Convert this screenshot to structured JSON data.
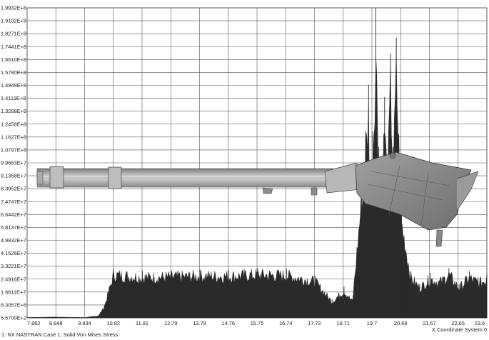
{
  "chart_data": {
    "type": "area",
    "title": "",
    "xlabel": "X Coordinate System 0",
    "ylabel": "",
    "legend_text": "1: NX NASTRAN Case 1, Solid Von Mises Stress",
    "x_ticks": [
      "7.862",
      "8.848",
      "9.834",
      "10.82",
      "11.81",
      "12.79",
      "13.78",
      "14.76",
      "15.75",
      "16.74",
      "17.72",
      "18.71",
      "19.7",
      "20.68",
      "21.67",
      "22.65",
      "23.6"
    ],
    "y_ticks": [
      "5.5700E+2",
      "8.3057E+6",
      "1.6611E+7",
      "2.4916E+7",
      "3.3221E+7",
      "4.1526E+7",
      "4.9832E+7",
      "5.8137E+7",
      "6.6442E+7",
      "7.4747E+7",
      "8.3052E+7",
      "9.1358E+7",
      "9.9663E+7",
      "1.0797E+8",
      "1.1627E+8",
      "1.2458E+8",
      "1.3288E+8",
      "1.4119E+8",
      "1.4949E+8",
      "1.5780E+8",
      "1.6610E+8",
      "1.7441E+8",
      "1.8271E+8",
      "1.9102E+8",
      "1.9932E+8"
    ],
    "xlim": [
      7.862,
      23.6
    ],
    "ylim": [
      557,
      199320000
    ],
    "grid": true,
    "series": [
      {
        "color": "#2a2a2a",
        "x": [
          7.862,
          8.848,
          9.834,
          10.3,
          10.5,
          10.82,
          11.81,
          12.79,
          13.78,
          14.76,
          15.75,
          16.74,
          17.72,
          18.3,
          18.71,
          19.0,
          19.3,
          19.45,
          19.55,
          19.6,
          19.7,
          19.8,
          19.9,
          20.0,
          20.1,
          20.2,
          20.3,
          20.4,
          20.5,
          20.68,
          21.0,
          21.3,
          21.67,
          22.0,
          22.3,
          22.65,
          23.0,
          23.3,
          23.6
        ],
        "values": [
          300000,
          600000,
          300000,
          1500000,
          8000000,
          32000000,
          30000000,
          30500000,
          31000000,
          31000000,
          32000000,
          31500000,
          27000000,
          12000000,
          20000000,
          12000000,
          85000000,
          120000000,
          150000000,
          95000000,
          120000000,
          199320000,
          110000000,
          92000000,
          142000000,
          95000000,
          170000000,
          110000000,
          180000000,
          70000000,
          30000000,
          22000000,
          29000000,
          26000000,
          32000000,
          22000000,
          30000000,
          26000000,
          28000000
        ]
      }
    ]
  }
}
